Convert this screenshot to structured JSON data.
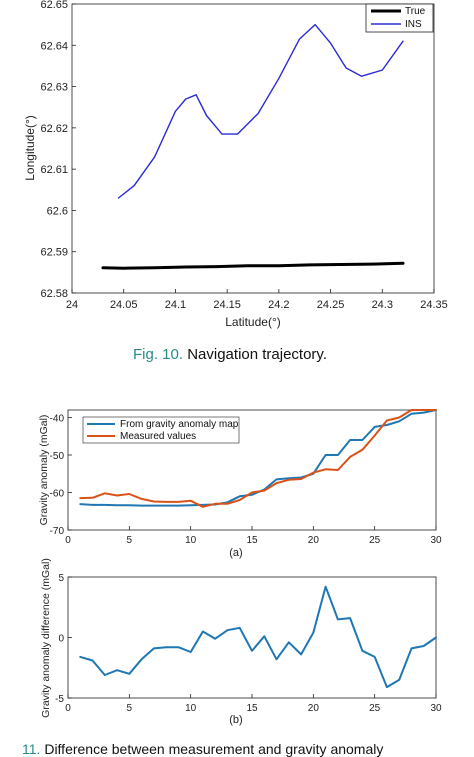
{
  "figure1": {
    "caption_prefix": "Fig. 10.",
    "caption_text": "Navigation trajectory."
  },
  "figure2": {
    "subcaption_a": "(a)",
    "subcaption_b": "(b)",
    "caption_prefix": "11.",
    "caption_text": "Difference between measurement and gravity anomaly"
  },
  "colors": {
    "true": "#000000",
    "ins": "#2b2bd6",
    "map": "#1f77b4",
    "measured": "#d95319"
  },
  "chart_data": [
    {
      "type": "line",
      "title": "",
      "xlabel": "Latitude(°)",
      "ylabel": "Longitude(°)",
      "xlim": [
        24,
        24.35
      ],
      "ylim": [
        62.58,
        62.65
      ],
      "xticks": [
        "24",
        "24.05",
        "24.1",
        "24.15",
        "24.2",
        "24.25",
        "24.3",
        "24.35"
      ],
      "yticks": [
        "62.58",
        "62.59",
        "62.6",
        "62.61",
        "62.62",
        "62.63",
        "62.64",
        "62.65"
      ],
      "legend": "top-right",
      "grid": false,
      "series": [
        {
          "name": "True",
          "x": [
            24.03,
            24.05,
            24.08,
            24.11,
            24.14,
            24.17,
            24.2,
            24.23,
            24.26,
            24.29,
            24.32
          ],
          "y": [
            62.5861,
            62.586,
            62.5861,
            62.5863,
            62.5864,
            62.5866,
            62.5866,
            62.5868,
            62.5869,
            62.587,
            62.5872
          ]
        },
        {
          "name": "INS",
          "x": [
            24.045,
            24.06,
            24.08,
            24.1,
            24.11,
            24.12,
            24.13,
            24.145,
            24.16,
            24.18,
            24.2,
            24.22,
            24.235,
            24.25,
            24.265,
            24.28,
            24.3,
            24.32
          ],
          "y": [
            62.603,
            62.606,
            62.613,
            62.624,
            62.627,
            62.628,
            62.623,
            62.6185,
            62.6185,
            62.6235,
            62.632,
            62.6415,
            62.645,
            62.6405,
            62.6345,
            62.6325,
            62.634,
            62.641
          ]
        }
      ]
    },
    {
      "type": "line",
      "title": "",
      "xlabel": "",
      "ylabel": "Gravity anomaly (mGal)",
      "xlim": [
        0,
        30
      ],
      "ylim": [
        -70,
        -38
      ],
      "xticks": [
        "0",
        "5",
        "10",
        "15",
        "20",
        "25",
        "30"
      ],
      "yticks": [
        "-70",
        "-60",
        "-50",
        "-40"
      ],
      "legend": "top-left",
      "grid": false,
      "series": [
        {
          "name": "From gravity anomaly map",
          "x": [
            1,
            2,
            3,
            4,
            5,
            6,
            7,
            8,
            9,
            10,
            11,
            12,
            13,
            14,
            15,
            16,
            17,
            18,
            19,
            20,
            21,
            22,
            23,
            24,
            25,
            26,
            27,
            28,
            29,
            30
          ],
          "y": [
            -63.1,
            -63.3,
            -63.3,
            -63.4,
            -63.4,
            -63.5,
            -63.5,
            -63.5,
            -63.5,
            -63.4,
            -63.3,
            -63.2,
            -62.6,
            -61.0,
            -60.6,
            -59.2,
            -56.5,
            -56.2,
            -56.0,
            -55.0,
            -50.0,
            -50.0,
            -46.0,
            -46.0,
            -42.5,
            -42.0,
            -41.0,
            -39.0,
            -38.7,
            -38.0
          ]
        },
        {
          "name": "Measured values",
          "x": [
            1,
            2,
            3,
            4,
            5,
            6,
            7,
            8,
            9,
            10,
            11,
            12,
            13,
            14,
            15,
            16,
            17,
            18,
            19,
            20,
            21,
            22,
            23,
            24,
            25,
            26,
            27,
            28,
            29,
            30
          ],
          "y": [
            -61.5,
            -61.4,
            -60.2,
            -60.8,
            -60.4,
            -61.7,
            -62.4,
            -62.5,
            -62.5,
            -62.2,
            -63.8,
            -63.0,
            -63.0,
            -62.0,
            -60.0,
            -59.5,
            -57.5,
            -56.6,
            -56.4,
            -54.7,
            -53.8,
            -54.0,
            -50.5,
            -48.6,
            -44.8,
            -40.8,
            -40.0,
            -38.0,
            -38.0,
            -38.0
          ]
        }
      ]
    },
    {
      "type": "line",
      "title": "",
      "xlabel": "",
      "ylabel": "Gravity anomaly difference (mGal)",
      "xlim": [
        0,
        30
      ],
      "ylim": [
        -5,
        5
      ],
      "xticks": [
        "0",
        "5",
        "10",
        "15",
        "20",
        "25",
        "30"
      ],
      "yticks": [
        "-5",
        "0",
        "5"
      ],
      "legend": "none",
      "grid": false,
      "series": [
        {
          "x": [
            1,
            2,
            3,
            4,
            5,
            6,
            7,
            8,
            9,
            10,
            11,
            12,
            13,
            14,
            15,
            16,
            17,
            18,
            19,
            20,
            21,
            22,
            23,
            24,
            25,
            26,
            27,
            28,
            29,
            30
          ],
          "y": [
            -1.6,
            -1.9,
            -3.1,
            -2.7,
            -3.0,
            -1.8,
            -0.9,
            -0.8,
            -0.8,
            -1.2,
            0.5,
            -0.1,
            0.6,
            0.8,
            -1.1,
            0.1,
            -1.8,
            -0.4,
            -1.4,
            0.4,
            4.2,
            1.5,
            1.6,
            -1.1,
            -1.6,
            -4.1,
            -3.5,
            -0.9,
            -0.7,
            0.0
          ]
        }
      ]
    }
  ]
}
